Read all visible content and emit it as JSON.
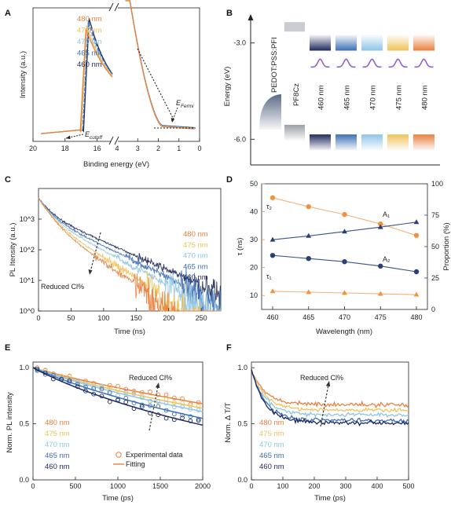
{
  "colors": {
    "480 nm": "#e9803f",
    "475 nm": "#f0c25a",
    "470 nm": "#8ec5e6",
    "465 nm": "#3d6fb6",
    "460 nm": "#1f2a5c",
    "tau_axis": "#f0923f",
    "prop_axis": "#2a4a8a"
  },
  "chart_data": [
    {
      "panel": "A",
      "type": "line",
      "xlabel": "Binding energy (eV)",
      "ylabel": "Intensity (a.u.)",
      "x_left_ticks": [
        "20",
        "18",
        "16"
      ],
      "x_right_ticks": [
        "4",
        "3",
        "2",
        "1",
        "0"
      ],
      "legend": [
        "480 nm",
        "475 nm",
        "470 nm",
        "465 nm",
        "460 nm"
      ],
      "annotations": [
        "E",
        "cutoff",
        "E",
        "Fermi"
      ],
      "x_left_range": [
        20,
        15
      ],
      "x_right_range": [
        4,
        0
      ],
      "cutoff_onset_eV": [
        17.05,
        17.0,
        16.95,
        16.9,
        16.85
      ],
      "fermi_edge_eV": 1.8
    },
    {
      "panel": "B",
      "type": "diagram",
      "ylabel": "Energy (eV)",
      "y_ticks": [
        "-3.0",
        "-6.0"
      ],
      "y_range": [
        -6.8,
        -2.2
      ],
      "layers": [
        "PEDOT:PSS:PFI",
        "PF8Cz",
        "460 nm",
        "465 nm",
        "470 nm",
        "475 nm",
        "480 nm"
      ]
    },
    {
      "panel": "C",
      "type": "line",
      "xlabel": "Time (ns)",
      "ylabel": "PL Itensity (a.u.)",
      "x_ticks": [
        "0",
        "50",
        "100",
        "150",
        "200",
        "250"
      ],
      "x_range": [
        0,
        280
      ],
      "y_log": true,
      "y_ticks": [
        "10^0",
        "10^1",
        "10^2",
        "10^3"
      ],
      "y_range": [
        1,
        10000
      ],
      "legend": [
        "480 nm",
        "475 nm",
        "470 nm",
        "465 nm",
        "460 nm"
      ],
      "annotation": "Reduced Cl%",
      "series": [
        {
          "name": "480 nm",
          "A": 4800,
          "tau1": 12,
          "tau2": 30,
          "frac1": 0.78
        },
        {
          "name": "475 nm",
          "A": 4800,
          "tau1": 12,
          "tau2": 33,
          "frac1": 0.76
        },
        {
          "name": "470 nm",
          "A": 4800,
          "tau1": 12,
          "tau2": 38,
          "frac1": 0.73
        },
        {
          "name": "465 nm",
          "A": 4800,
          "tau1": 12,
          "tau2": 42,
          "frac1": 0.7
        },
        {
          "name": "460 nm",
          "A": 4800,
          "tau1": 12,
          "tau2": 46,
          "frac1": 0.66
        }
      ]
    },
    {
      "panel": "D",
      "type": "scatter",
      "xlabel": "Wavelength (nm)",
      "ylabel_left": "τ (ns)",
      "ylabel_right": "Proportion (%)",
      "x": [
        460,
        465,
        470,
        475,
        480
      ],
      "x_ticks": [
        "460",
        "465",
        "470",
        "475",
        "480"
      ],
      "y_left_ticks": [
        "10",
        "20",
        "30",
        "40",
        "50"
      ],
      "y_left_range": [
        5,
        50
      ],
      "y_right_ticks": [
        "0",
        "25",
        "50",
        "75",
        "100"
      ],
      "y_right_range": [
        0,
        100
      ],
      "series": [
        {
          "name": "τ2",
          "axis": "left",
          "marker": "circle",
          "values": [
            45,
            41.8,
            39,
            35.6,
            31.5
          ]
        },
        {
          "name": "τ1",
          "axis": "left",
          "marker": "triangle",
          "values": [
            11.5,
            11.2,
            10.9,
            10.6,
            10.3
          ]
        },
        {
          "name": "A1",
          "axis": "right",
          "marker": "triangle",
          "values": [
            55.5,
            58.5,
            62,
            65.5,
            69.5
          ]
        },
        {
          "name": "A2",
          "axis": "right",
          "marker": "circle",
          "values": [
            43,
            40.5,
            38,
            34.5,
            30
          ]
        }
      ],
      "series_labels": [
        "τ₂",
        "τ₁",
        "A₁",
        "A₂"
      ]
    },
    {
      "panel": "E",
      "type": "scatter",
      "xlabel": "Time (ps)",
      "ylabel": "Norm. PL intensity",
      "x_ticks": [
        "0",
        "500",
        "1000",
        "1500",
        "2000"
      ],
      "x_range": [
        0,
        2000
      ],
      "y_ticks": [
        "0.0",
        "0.5",
        "1.0"
      ],
      "y_range": [
        0,
        1.05
      ],
      "legend": [
        "480 nm",
        "475 nm",
        "470 nm",
        "465 nm",
        "460 nm"
      ],
      "legend2": [
        "Experimental data",
        "Fitting"
      ],
      "annotation": "Reduced Cl%",
      "series": [
        {
          "name": "480 nm",
          "fit_end": 0.68
        },
        {
          "name": "475 nm",
          "fit_end": 0.64
        },
        {
          "name": "470 nm",
          "fit_end": 0.61
        },
        {
          "name": "465 nm",
          "fit_end": 0.55
        },
        {
          "name": "460 nm",
          "fit_end": 0.49
        }
      ]
    },
    {
      "panel": "F",
      "type": "line",
      "xlabel": "Time (ps)",
      "ylabel": "Norm. Δ T/T",
      "x_ticks": [
        "0",
        "100",
        "200",
        "300",
        "400",
        "500"
      ],
      "x_range": [
        0,
        500
      ],
      "y_ticks": [
        "0.0",
        "0.5",
        "1.0"
      ],
      "y_range": [
        0,
        1.05
      ],
      "legend": [
        "480 nm",
        "475 nm",
        "470 nm",
        "465 nm",
        "460 nm"
      ],
      "annotation": "Reduced Cl%",
      "series": [
        {
          "name": "480 nm",
          "plateau": 0.67
        },
        {
          "name": "475 nm",
          "plateau": 0.62
        },
        {
          "name": "470 nm",
          "plateau": 0.58
        },
        {
          "name": "465 nm",
          "plateau": 0.53
        },
        {
          "name": "460 nm",
          "plateau": 0.51
        }
      ]
    }
  ],
  "panel_labels": [
    "A",
    "B",
    "C",
    "D",
    "E",
    "F"
  ]
}
